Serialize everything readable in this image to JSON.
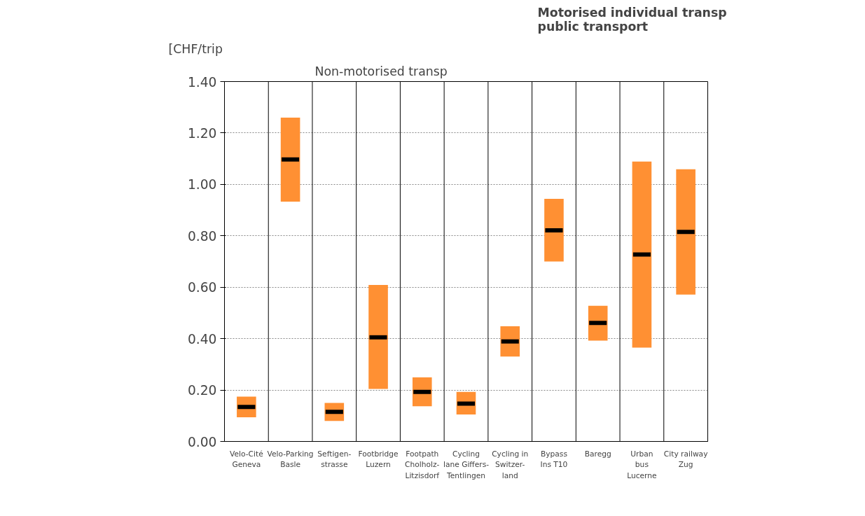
{
  "chart_data": {
    "type": "box",
    "ylabel": "[CHF/trip",
    "categories": [
      "Velo-Cité\nGeneva",
      "Velo-Parking\nBasle",
      "Seftigen-\nstrasse",
      "Footbridge\nLuzern",
      "Footpath\nCholholz-\nLitzisdorf",
      "Cycling\nlane Giffers-\nTentlingen",
      "Cycling in\nSwitzer-\nland",
      "Bypass\nIns T10",
      "Baregg",
      "Urban\nbus\nLucerne",
      "City railway\nZug"
    ],
    "series": [
      {
        "color": "#ff9033",
        "boxes": [
          {
            "low": 0.094,
            "q1": 0.094,
            "median": 0.134,
            "q3": 0.174,
            "high": 0.174
          },
          {
            "low": 0.933,
            "q1": 0.933,
            "median": 1.097,
            "q3": 1.26,
            "high": 1.26
          },
          {
            "low": 0.08,
            "q1": 0.08,
            "median": 0.115,
            "q3": 0.15,
            "high": 0.15
          },
          {
            "low": 0.204,
            "q1": 0.204,
            "median": 0.405,
            "q3": 0.609,
            "high": 0.609
          },
          {
            "low": 0.137,
            "q1": 0.137,
            "median": 0.193,
            "q3": 0.249,
            "high": 0.249
          },
          {
            "low": 0.105,
            "q1": 0.105,
            "median": 0.147,
            "q3": 0.193,
            "high": 0.193
          },
          {
            "low": 0.33,
            "q1": 0.33,
            "median": 0.389,
            "q3": 0.448,
            "high": 0.448
          },
          {
            "low": 0.7,
            "q1": 0.7,
            "median": 0.821,
            "q3": 0.944,
            "high": 0.944
          },
          {
            "low": 0.392,
            "q1": 0.392,
            "median": 0.461,
            "q3": 0.528,
            "high": 0.528
          },
          {
            "low": 0.365,
            "q1": 0.365,
            "median": 0.727,
            "q3": 1.089,
            "high": 1.089
          },
          {
            "low": 0.571,
            "q1": 0.571,
            "median": 0.815,
            "q3": 1.059,
            "high": 1.059
          }
        ]
      }
    ],
    "ylim": [
      0,
      1.4
    ],
    "yticks": [
      {
        "value": 0,
        "label": "0.00"
      },
      {
        "value": 0.2,
        "label": "0.20"
      },
      {
        "value": 0.4,
        "label": "0.40"
      },
      {
        "value": 0.6,
        "label": "0.60"
      },
      {
        "value": 0.8,
        "label": "0.80"
      },
      {
        "value": 1.0,
        "label": "1.00"
      },
      {
        "value": 1.2,
        "label": "1.20"
      },
      {
        "value": 1.4,
        "label": "1.40"
      }
    ],
    "grid": "y",
    "annotations": [
      "Non-motorised transp",
      "Motorised individual transp\npublic transport"
    ]
  }
}
